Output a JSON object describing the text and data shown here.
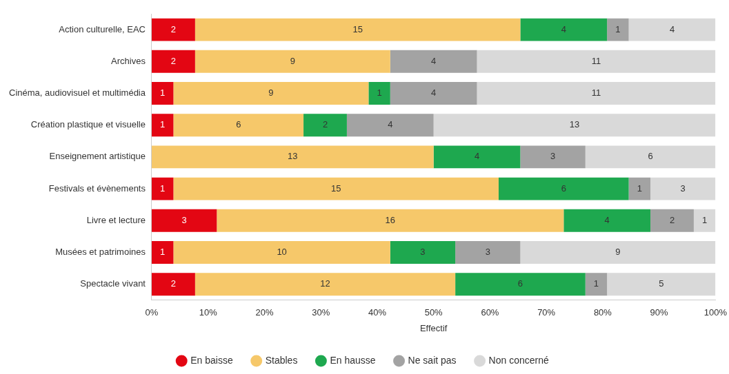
{
  "chart_data": {
    "type": "bar",
    "orientation": "horizontal",
    "stacked": true,
    "xlabel": "Effectif",
    "categories": [
      "Action culturelle, EAC",
      "Archives",
      "Cinéma, audiovisuel et multimédia",
      "Création plastique et visuelle",
      "Enseignement artistique",
      "Festivals et évènements",
      "Livre et lecture",
      "Musées et patrimoines",
      "Spectacle vivant"
    ],
    "series": [
      {
        "name": "En baisse",
        "color": "#e30613",
        "values": [
          2,
          2,
          1,
          1,
          null,
          1,
          3,
          1,
          2
        ]
      },
      {
        "name": "Stables",
        "color": "#f6c86a",
        "values": [
          15,
          9,
          9,
          6,
          13,
          15,
          16,
          10,
          12
        ]
      },
      {
        "name": "En hausse",
        "color": "#1ea84f",
        "values": [
          4,
          null,
          1,
          2,
          4,
          6,
          4,
          3,
          6
        ]
      },
      {
        "name": "Ne sait pas",
        "color": "#a3a3a3",
        "values": [
          1,
          4,
          4,
          4,
          3,
          1,
          2,
          3,
          1
        ]
      },
      {
        "name": "Non concerné",
        "color": "#d9d9d9",
        "values": [
          4,
          11,
          11,
          13,
          6,
          3,
          1,
          9,
          5
        ]
      }
    ],
    "xlim": [
      0,
      26
    ],
    "x2lim": [
      0,
      100
    ],
    "x2ticks": [
      {
        "value": 0,
        "label": "0%"
      },
      {
        "value": 10,
        "label": "10%"
      },
      {
        "value": 20,
        "label": "20%"
      },
      {
        "value": 30,
        "label": "30%"
      },
      {
        "value": 40,
        "label": "40%"
      },
      {
        "value": 50,
        "label": "50%"
      },
      {
        "value": 60,
        "label": "60%"
      },
      {
        "value": 70,
        "label": "70%"
      },
      {
        "value": 80,
        "label": "80%"
      },
      {
        "value": 90,
        "label": "90%"
      },
      {
        "value": 100,
        "label": "100%"
      }
    ],
    "data_labels": true,
    "legend": "bottom",
    "marker": "circle",
    "grid": false
  }
}
